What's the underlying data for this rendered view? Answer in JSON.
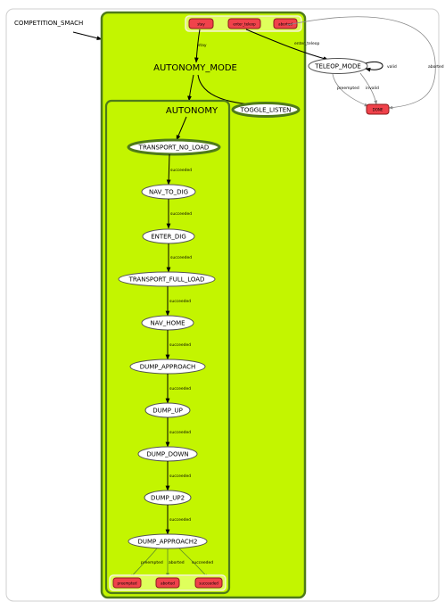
{
  "graph": {
    "root_label": "COMPETITION_SMACH",
    "autonomy_mode": {
      "label": "AUTONOMY_MODE",
      "outcomes": [
        "stay",
        "enter_teleop",
        "aborted"
      ]
    },
    "autonomy": {
      "label": "AUTONOMY",
      "outcomes": [
        "preempted",
        "aborted",
        "succeeded"
      ]
    },
    "states": {
      "toggle_listen": "TOGGLE_LISTEN",
      "teleop_mode": "TELEOP_MODE",
      "done": "DONE",
      "transport_no_load": "TRANSPORT_NO_LOAD",
      "nav_to_dig": "NAV_TO_DIG",
      "enter_dig": "ENTER_DIG",
      "transport_full_load": "TRANSPORT_FULL_LOAD",
      "nav_home": "NAV_HOME",
      "dump_approach": "DUMP_APPROACH",
      "dump_up": "DUMP_UP",
      "dump_down": "DUMP_DOWN",
      "dump_up2": "DUMP_UP2",
      "dump_approach2": "DUMP_APPROACH2"
    },
    "edge_labels": {
      "stay": "stay",
      "enter_teleop": "enter_teleop",
      "aborted": "aborted",
      "valid": "valid",
      "preempted": "preempted",
      "invalid": "invalid",
      "succeeded": "succeeded"
    }
  },
  "colors": {
    "container_fill": "#c3f500",
    "container_border": "#4f7a1a",
    "outcome_fill": "#f0424b",
    "outcome_box": "#dfff5c"
  }
}
